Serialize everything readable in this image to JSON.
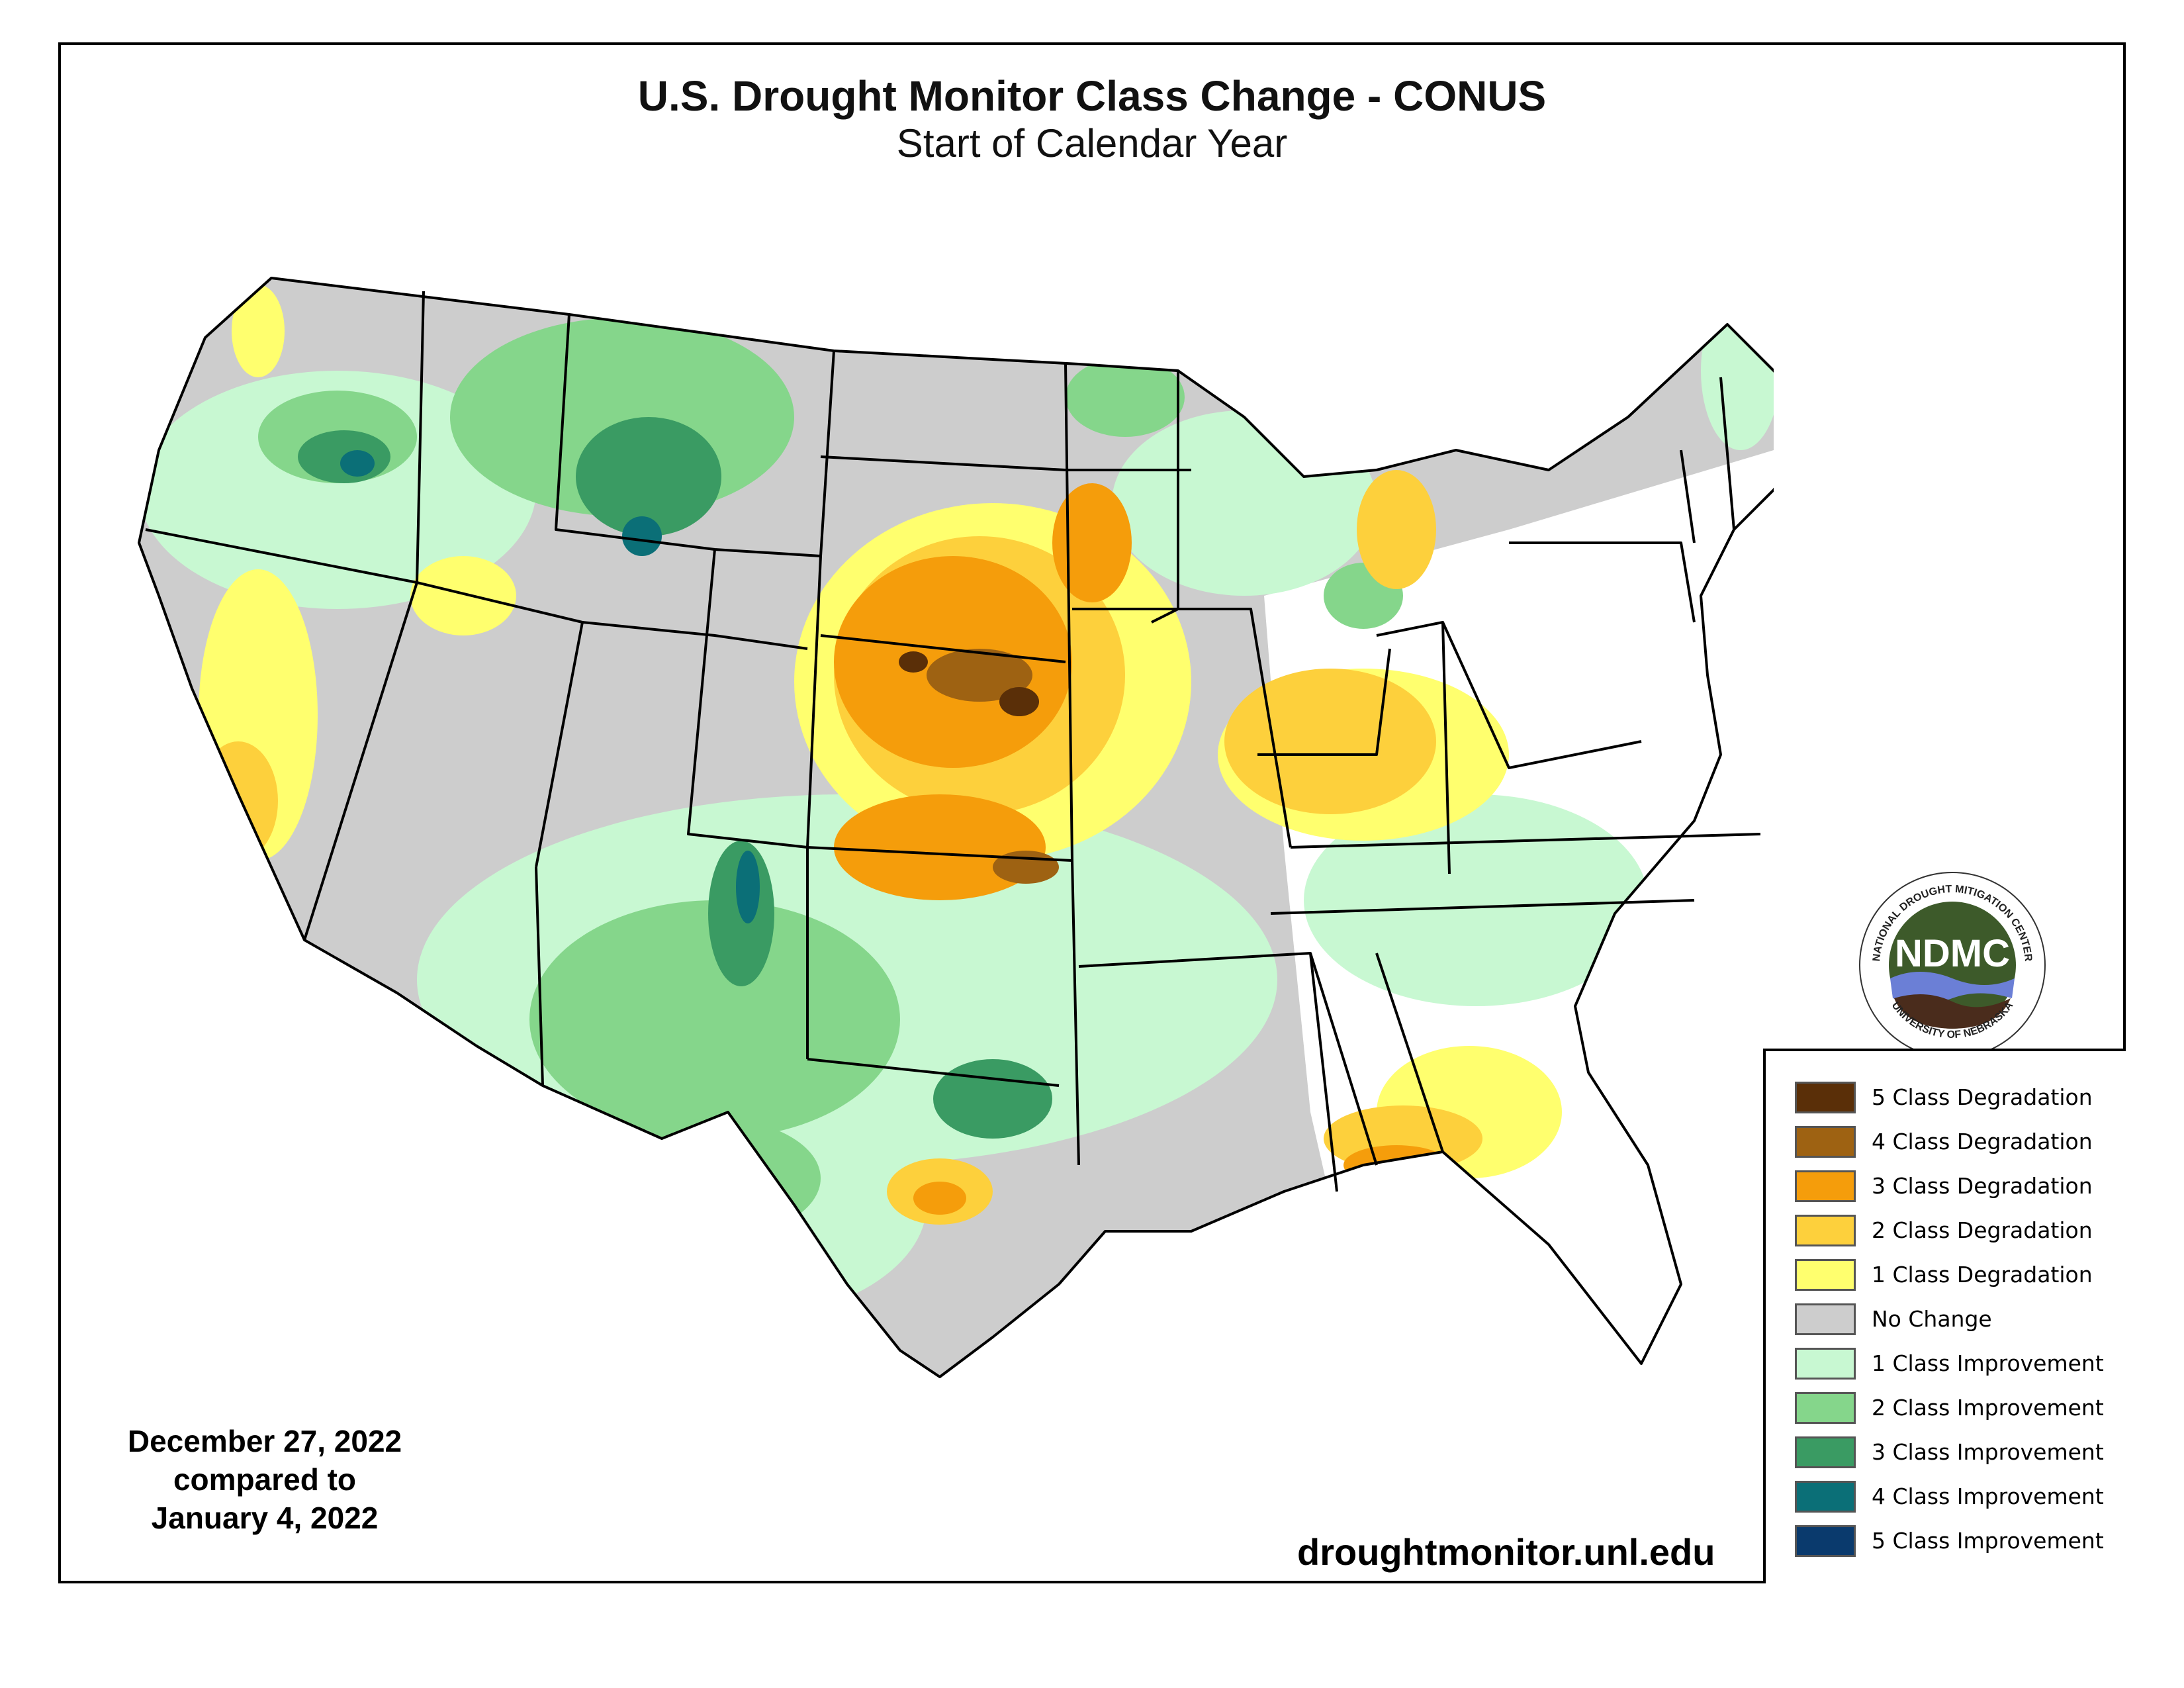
{
  "title": "U.S. Drought Monitor Class Change - CONUS",
  "subtitle": "Start of Calendar Year",
  "date_compare": {
    "line1": "December 27, 2022",
    "line2": "compared to",
    "line3": "January 4, 2022"
  },
  "source_url": "droughtmonitor.unl.edu",
  "logo": {
    "text": "NDMC",
    "ring_top": "NATIONAL DROUGHT MITIGATION CENTER",
    "ring_bottom": "UNIVERSITY OF NEBRASKA"
  },
  "legend": {
    "items": [
      {
        "label": "5 Class Degradation",
        "color": "#5a2f08"
      },
      {
        "label": "4 Class Degradation",
        "color": "#9e6212"
      },
      {
        "label": "3 Class Degradation",
        "color": "#f59d0b"
      },
      {
        "label": "2 Class Degradation",
        "color": "#fdd03c"
      },
      {
        "label": "1 Class Degradation",
        "color": "#ffff6e"
      },
      {
        "label": "No Change",
        "color": "#cdcdcd"
      },
      {
        "label": "1 Class Improvement",
        "color": "#c8f8d2"
      },
      {
        "label": "2 Class Improvement",
        "color": "#85d68b"
      },
      {
        "label": "3 Class Improvement",
        "color": "#3a9b63"
      },
      {
        "label": "4 Class Improvement",
        "color": "#0b6f77"
      },
      {
        "label": "5 Class Improvement",
        "color": "#0a3a6d"
      }
    ]
  }
}
